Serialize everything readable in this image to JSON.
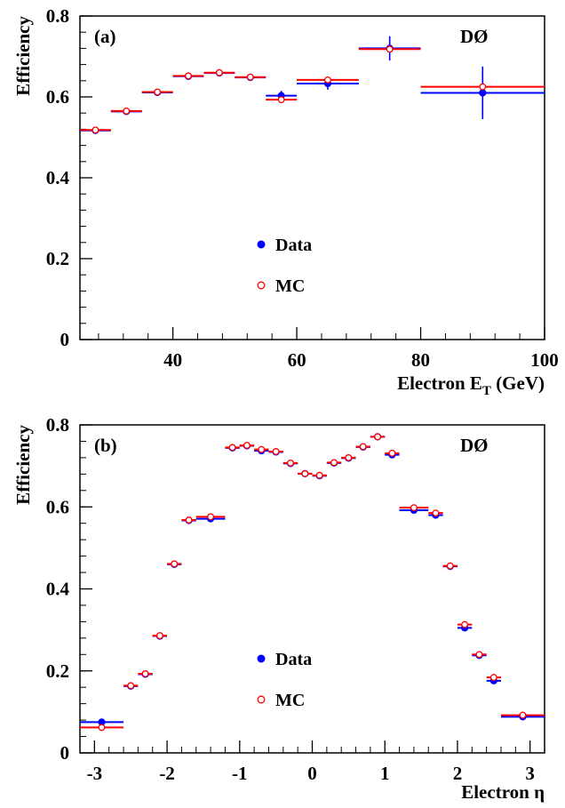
{
  "chart_data": [
    {
      "type": "scatter",
      "panel_label": "(a)",
      "experiment_label": "DØ",
      "xlabel": {
        "text": "Electron E",
        "sub": "T",
        "suffix": " (GeV)"
      },
      "ylabel": "Efficiency",
      "xlim": [
        25,
        100
      ],
      "ylim": [
        0,
        0.8
      ],
      "xticks": [
        40,
        60,
        80,
        100
      ],
      "xtick_labels": [
        "40",
        "60",
        "80",
        "100"
      ],
      "yticks": [
        0,
        0.2,
        0.4,
        0.6,
        0.8
      ],
      "ytick_labels": [
        "0",
        "0.2",
        "0.4",
        "0.6",
        "0.8"
      ],
      "legend_position": "lower-center",
      "series": [
        {
          "name": "Data",
          "marker": "filled-circle",
          "color": "#0000ff",
          "points": [
            {
              "x": 27.5,
              "xlo": 25,
              "xhi": 30,
              "y": 0.517,
              "yerr": 0.003
            },
            {
              "x": 32.5,
              "xlo": 30,
              "xhi": 35,
              "y": 0.564,
              "yerr": 0.003
            },
            {
              "x": 37.5,
              "xlo": 35,
              "xhi": 40,
              "y": 0.611,
              "yerr": 0.003
            },
            {
              "x": 42.5,
              "xlo": 40,
              "xhi": 45,
              "y": 0.651,
              "yerr": 0.003
            },
            {
              "x": 47.5,
              "xlo": 45,
              "xhi": 50,
              "y": 0.659,
              "yerr": 0.003
            },
            {
              "x": 52.5,
              "xlo": 50,
              "xhi": 55,
              "y": 0.648,
              "yerr": 0.003
            },
            {
              "x": 57.5,
              "xlo": 55,
              "xhi": 60,
              "y": 0.603,
              "yerr": 0.012
            },
            {
              "x": 65,
              "xlo": 60,
              "xhi": 70,
              "y": 0.633,
              "yerr": 0.015
            },
            {
              "x": 75,
              "xlo": 70,
              "xhi": 80,
              "y": 0.72,
              "yerr": 0.03
            },
            {
              "x": 90,
              "xlo": 80,
              "xhi": 100,
              "y": 0.61,
              "yerr": 0.065
            }
          ]
        },
        {
          "name": "MC",
          "marker": "open-circle",
          "color": "#ff0000",
          "points": [
            {
              "x": 27.5,
              "xlo": 25,
              "xhi": 30,
              "y": 0.518,
              "yerr": 0.002
            },
            {
              "x": 32.5,
              "xlo": 30,
              "xhi": 35,
              "y": 0.565,
              "yerr": 0.002
            },
            {
              "x": 37.5,
              "xlo": 35,
              "xhi": 40,
              "y": 0.612,
              "yerr": 0.002
            },
            {
              "x": 42.5,
              "xlo": 40,
              "xhi": 45,
              "y": 0.652,
              "yerr": 0.002
            },
            {
              "x": 47.5,
              "xlo": 45,
              "xhi": 50,
              "y": 0.66,
              "yerr": 0.002
            },
            {
              "x": 52.5,
              "xlo": 50,
              "xhi": 55,
              "y": 0.649,
              "yerr": 0.002
            },
            {
              "x": 57.5,
              "xlo": 55,
              "xhi": 60,
              "y": 0.593,
              "yerr": 0.005
            },
            {
              "x": 65,
              "xlo": 60,
              "xhi": 70,
              "y": 0.642,
              "yerr": 0.005
            },
            {
              "x": 75,
              "xlo": 70,
              "xhi": 80,
              "y": 0.718,
              "yerr": 0.005
            },
            {
              "x": 90,
              "xlo": 80,
              "xhi": 100,
              "y": 0.625,
              "yerr": 0.005
            }
          ]
        }
      ]
    },
    {
      "type": "scatter",
      "panel_label": "(b)",
      "experiment_label": "DØ",
      "xlabel": {
        "text": "Electron η",
        "sub": "",
        "suffix": ""
      },
      "ylabel": "Efficiency",
      "xlim": [
        -3.2,
        3.2
      ],
      "ylim": [
        0,
        0.8
      ],
      "xticks": [
        -3,
        -2,
        -1,
        0,
        1,
        2,
        3
      ],
      "xtick_labels": [
        "-3",
        "-2",
        "-1",
        "0",
        "1",
        "2",
        "3"
      ],
      "yticks": [
        0,
        0.2,
        0.4,
        0.6,
        0.8
      ],
      "ytick_labels": [
        "0",
        "0.2",
        "0.4",
        "0.6",
        "0.8"
      ],
      "legend_position": "lower-center",
      "series": [
        {
          "name": "Data",
          "marker": "filled-circle",
          "color": "#0000ff",
          "points": [
            {
              "x": -2.9,
              "xlo": -3.2,
              "xhi": -2.6,
              "y": 0.075,
              "yerr": 0.003
            },
            {
              "x": -2.5,
              "xlo": -2.6,
              "xhi": -2.4,
              "y": 0.163,
              "yerr": 0.003
            },
            {
              "x": -2.3,
              "xlo": -2.4,
              "xhi": -2.2,
              "y": 0.192,
              "yerr": 0.003
            },
            {
              "x": -2.1,
              "xlo": -2.2,
              "xhi": -2.0,
              "y": 0.285,
              "yerr": 0.003
            },
            {
              "x": -1.9,
              "xlo": -2.0,
              "xhi": -1.8,
              "y": 0.46,
              "yerr": 0.003
            },
            {
              "x": -1.7,
              "xlo": -1.8,
              "xhi": -1.6,
              "y": 0.567,
              "yerr": 0.003
            },
            {
              "x": -1.4,
              "xlo": -1.6,
              "xhi": -1.2,
              "y": 0.571,
              "yerr": 0.003
            },
            {
              "x": -1.1,
              "xlo": -1.2,
              "xhi": -1.0,
              "y": 0.744,
              "yerr": 0.003
            },
            {
              "x": -0.9,
              "xlo": -1.0,
              "xhi": -0.8,
              "y": 0.749,
              "yerr": 0.003
            },
            {
              "x": -0.7,
              "xlo": -0.8,
              "xhi": -0.6,
              "y": 0.737,
              "yerr": 0.003
            },
            {
              "x": -0.5,
              "xlo": -0.6,
              "xhi": -0.4,
              "y": 0.734,
              "yerr": 0.003
            },
            {
              "x": -0.3,
              "xlo": -0.4,
              "xhi": -0.2,
              "y": 0.706,
              "yerr": 0.003
            },
            {
              "x": -0.1,
              "xlo": -0.2,
              "xhi": 0.0,
              "y": 0.681,
              "yerr": 0.003
            },
            {
              "x": 0.1,
              "xlo": 0.0,
              "xhi": 0.2,
              "y": 0.676,
              "yerr": 0.003
            },
            {
              "x": 0.3,
              "xlo": 0.2,
              "xhi": 0.4,
              "y": 0.707,
              "yerr": 0.003
            },
            {
              "x": 0.5,
              "xlo": 0.4,
              "xhi": 0.6,
              "y": 0.719,
              "yerr": 0.003
            },
            {
              "x": 0.7,
              "xlo": 0.6,
              "xhi": 0.8,
              "y": 0.746,
              "yerr": 0.003
            },
            {
              "x": 0.9,
              "xlo": 0.8,
              "xhi": 1.0,
              "y": 0.771,
              "yerr": 0.003
            },
            {
              "x": 1.1,
              "xlo": 1.0,
              "xhi": 1.2,
              "y": 0.727,
              "yerr": 0.003
            },
            {
              "x": 1.4,
              "xlo": 1.2,
              "xhi": 1.6,
              "y": 0.592,
              "yerr": 0.003
            },
            {
              "x": 1.7,
              "xlo": 1.6,
              "xhi": 1.8,
              "y": 0.58,
              "yerr": 0.003
            },
            {
              "x": 1.9,
              "xlo": 1.8,
              "xhi": 2.0,
              "y": 0.455,
              "yerr": 0.003
            },
            {
              "x": 2.1,
              "xlo": 2.0,
              "xhi": 2.2,
              "y": 0.305,
              "yerr": 0.003
            },
            {
              "x": 2.3,
              "xlo": 2.2,
              "xhi": 2.4,
              "y": 0.238,
              "yerr": 0.003
            },
            {
              "x": 2.5,
              "xlo": 2.4,
              "xhi": 2.6,
              "y": 0.176,
              "yerr": 0.003
            },
            {
              "x": 2.9,
              "xlo": 2.6,
              "xhi": 3.2,
              "y": 0.088,
              "yerr": 0.003
            }
          ]
        },
        {
          "name": "MC",
          "marker": "open-circle",
          "color": "#ff0000",
          "points": [
            {
              "x": -2.9,
              "xlo": -3.2,
              "xhi": -2.6,
              "y": 0.062,
              "yerr": 0.002
            },
            {
              "x": -2.5,
              "xlo": -2.6,
              "xhi": -2.4,
              "y": 0.164,
              "yerr": 0.002
            },
            {
              "x": -2.3,
              "xlo": -2.4,
              "xhi": -2.2,
              "y": 0.193,
              "yerr": 0.002
            },
            {
              "x": -2.1,
              "xlo": -2.2,
              "xhi": -2.0,
              "y": 0.286,
              "yerr": 0.002
            },
            {
              "x": -1.9,
              "xlo": -2.0,
              "xhi": -1.8,
              "y": 0.461,
              "yerr": 0.002
            },
            {
              "x": -1.7,
              "xlo": -1.8,
              "xhi": -1.6,
              "y": 0.568,
              "yerr": 0.002
            },
            {
              "x": -1.4,
              "xlo": -1.6,
              "xhi": -1.2,
              "y": 0.576,
              "yerr": 0.002
            },
            {
              "x": -1.1,
              "xlo": -1.2,
              "xhi": -1.0,
              "y": 0.745,
              "yerr": 0.002
            },
            {
              "x": -0.9,
              "xlo": -1.0,
              "xhi": -0.8,
              "y": 0.75,
              "yerr": 0.002
            },
            {
              "x": -0.7,
              "xlo": -0.8,
              "xhi": -0.6,
              "y": 0.74,
              "yerr": 0.002
            },
            {
              "x": -0.5,
              "xlo": -0.6,
              "xhi": -0.4,
              "y": 0.735,
              "yerr": 0.002
            },
            {
              "x": -0.3,
              "xlo": -0.4,
              "xhi": -0.2,
              "y": 0.707,
              "yerr": 0.002
            },
            {
              "x": -0.1,
              "xlo": -0.2,
              "xhi": 0.0,
              "y": 0.681,
              "yerr": 0.002
            },
            {
              "x": 0.1,
              "xlo": 0.0,
              "xhi": 0.2,
              "y": 0.677,
              "yerr": 0.002
            },
            {
              "x": 0.3,
              "xlo": 0.2,
              "xhi": 0.4,
              "y": 0.708,
              "yerr": 0.002
            },
            {
              "x": 0.5,
              "xlo": 0.4,
              "xhi": 0.6,
              "y": 0.72,
              "yerr": 0.002
            },
            {
              "x": 0.7,
              "xlo": 0.6,
              "xhi": 0.8,
              "y": 0.747,
              "yerr": 0.002
            },
            {
              "x": 0.9,
              "xlo": 0.8,
              "xhi": 1.0,
              "y": 0.771,
              "yerr": 0.002
            },
            {
              "x": 1.1,
              "xlo": 1.0,
              "xhi": 1.2,
              "y": 0.731,
              "yerr": 0.002
            },
            {
              "x": 1.4,
              "xlo": 1.2,
              "xhi": 1.6,
              "y": 0.598,
              "yerr": 0.002
            },
            {
              "x": 1.7,
              "xlo": 1.6,
              "xhi": 1.8,
              "y": 0.585,
              "yerr": 0.002
            },
            {
              "x": 1.9,
              "xlo": 1.8,
              "xhi": 2.0,
              "y": 0.456,
              "yerr": 0.002
            },
            {
              "x": 2.1,
              "xlo": 2.0,
              "xhi": 2.2,
              "y": 0.313,
              "yerr": 0.002
            },
            {
              "x": 2.3,
              "xlo": 2.2,
              "xhi": 2.4,
              "y": 0.24,
              "yerr": 0.002
            },
            {
              "x": 2.5,
              "xlo": 2.4,
              "xhi": 2.6,
              "y": 0.184,
              "yerr": 0.002
            },
            {
              "x": 2.9,
              "xlo": 2.6,
              "xhi": 3.2,
              "y": 0.092,
              "yerr": 0.002
            }
          ]
        }
      ]
    }
  ]
}
